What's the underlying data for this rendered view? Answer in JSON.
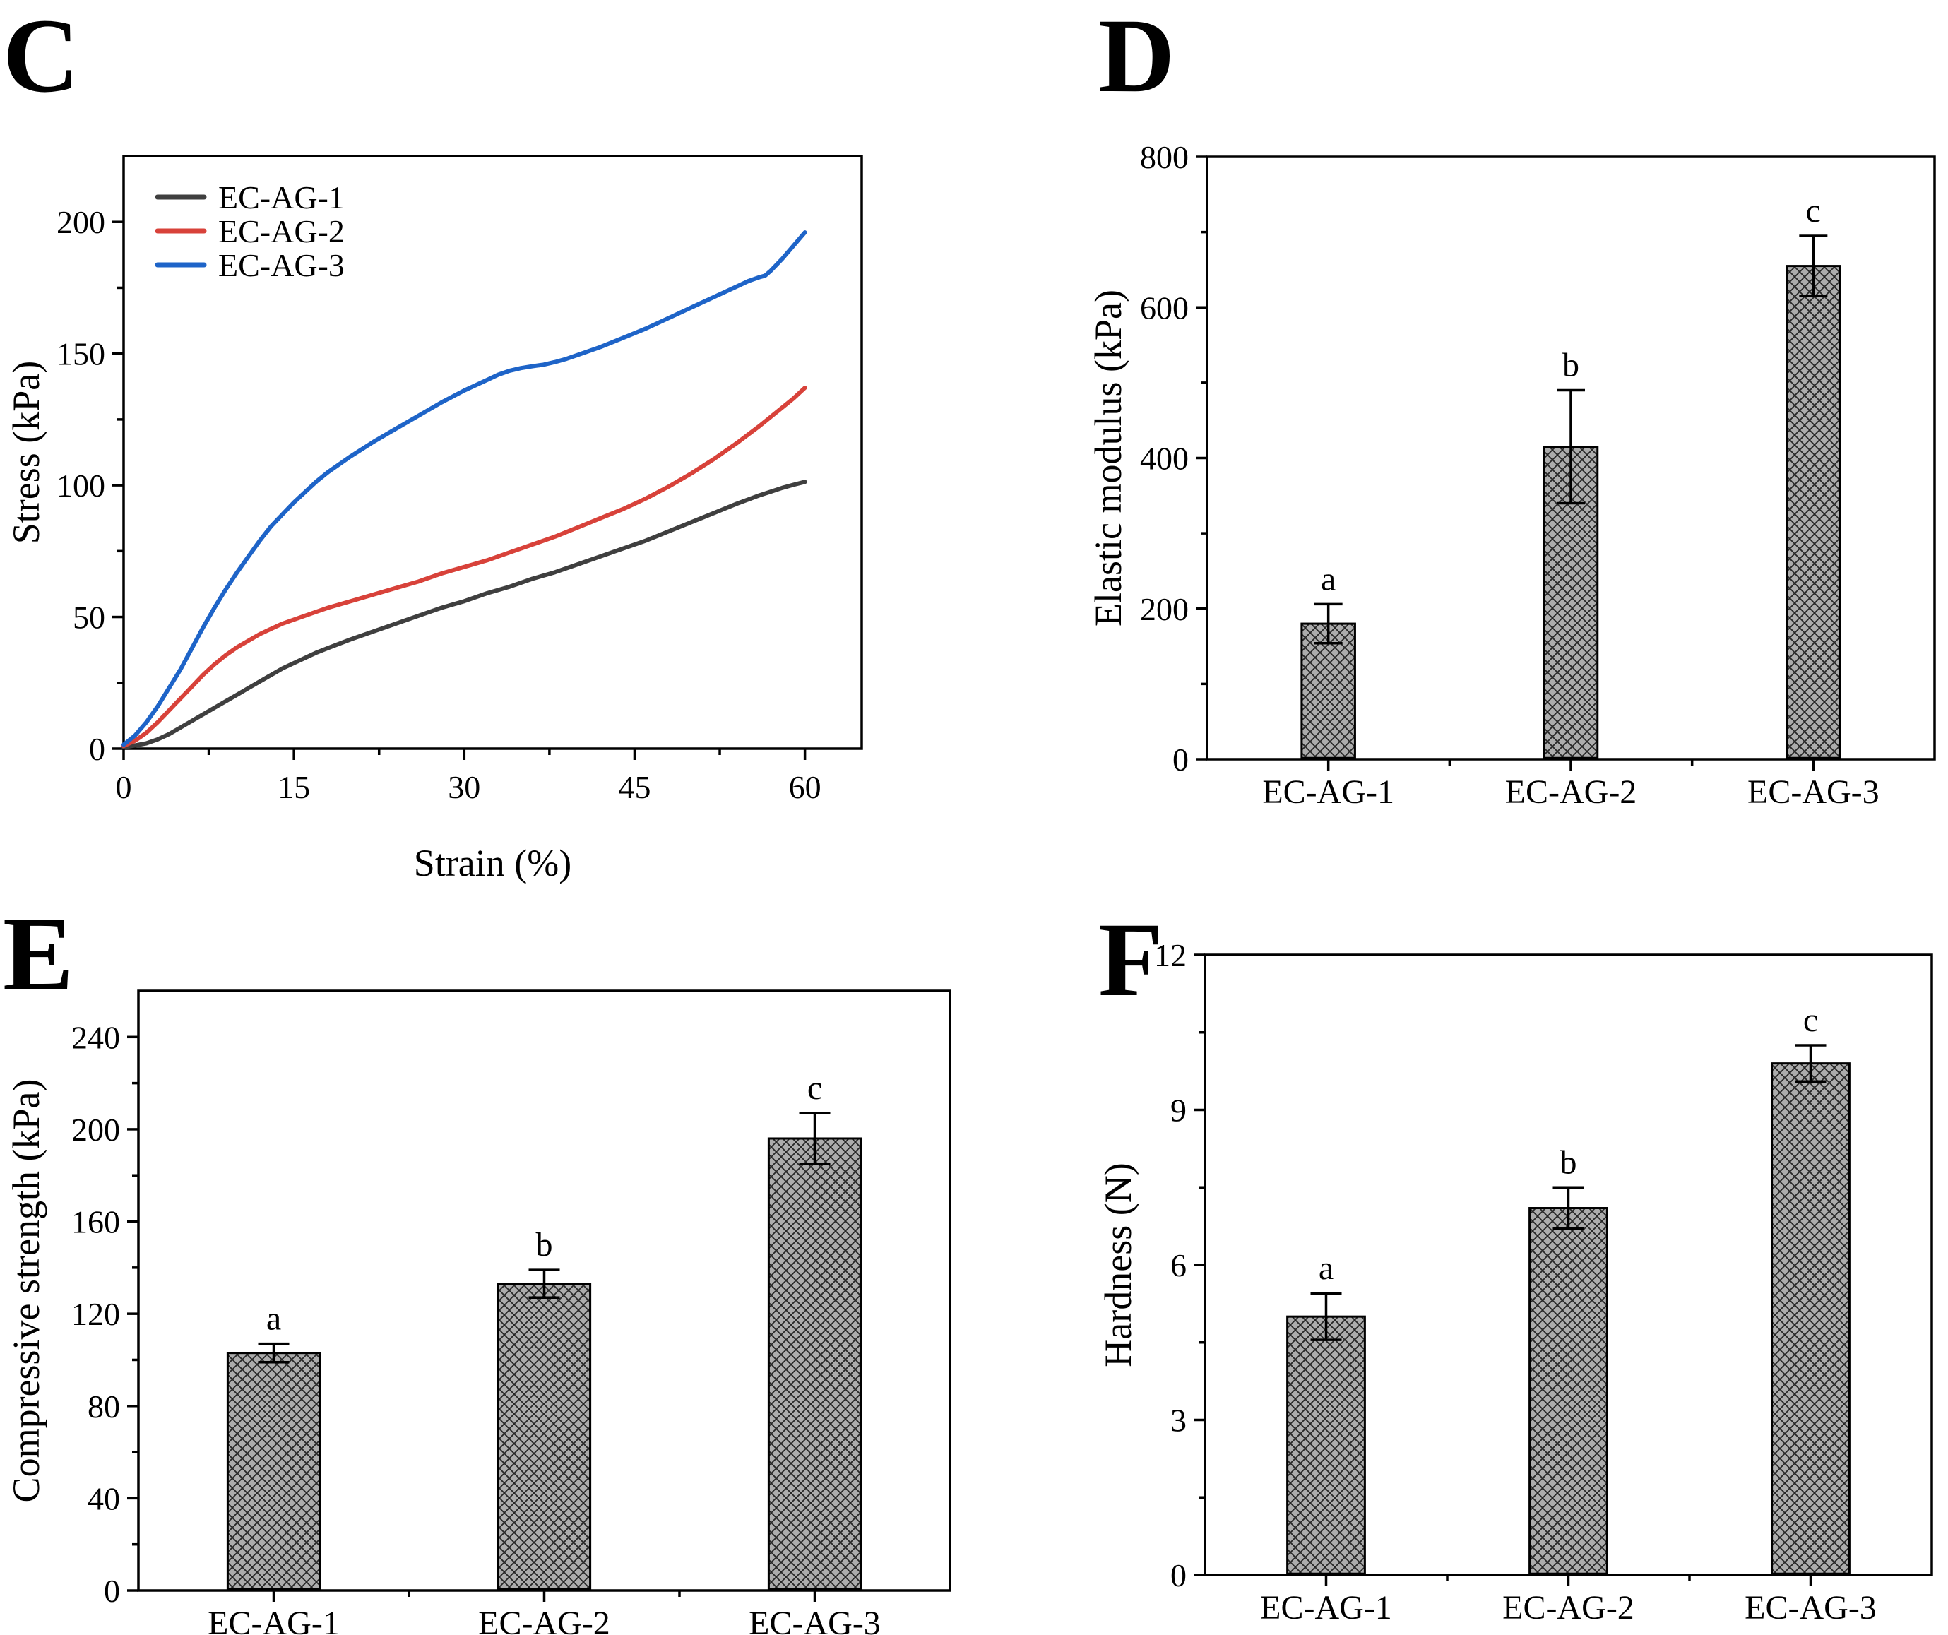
{
  "figure": {
    "background": "#ffffff",
    "panels": [
      {
        "id": "C",
        "label": "C",
        "chart_data": {
          "type": "line",
          "title": "",
          "xlabel": "Strain (%)",
          "ylabel": "Stress (kPa)",
          "xlim": [
            0,
            65
          ],
          "ylim": [
            0,
            225
          ],
          "xticks": [
            0,
            15,
            30,
            45,
            60
          ],
          "yticks": [
            0,
            50,
            100,
            150,
            200
          ],
          "x_minor_step": 7.5,
          "y_minor_step": 25,
          "grid": false,
          "legend_position": "top-left",
          "series": [
            {
              "name": "EC-AG-1",
              "color": "#3f3f3f",
              "points": [
                [
                  0,
                  0.5
                ],
                [
                  1,
                  1.2
                ],
                [
                  2,
                  2
                ],
                [
                  3,
                  3.5
                ],
                [
                  4,
                  5.5
                ],
                [
                  5,
                  8
                ],
                [
                  6,
                  10.5
                ],
                [
                  7,
                  13
                ],
                [
                  8,
                  15.5
                ],
                [
                  9,
                  18
                ],
                [
                  10,
                  20.5
                ],
                [
                  11,
                  23
                ],
                [
                  12,
                  25.5
                ],
                [
                  13,
                  28
                ],
                [
                  14,
                  30.5
                ],
                [
                  15,
                  32.5
                ],
                [
                  16,
                  34.5
                ],
                [
                  17,
                  36.5
                ],
                [
                  18,
                  38.2
                ],
                [
                  20,
                  41.5
                ],
                [
                  22,
                  44.5
                ],
                [
                  24,
                  47.5
                ],
                [
                  26,
                  50.5
                ],
                [
                  28,
                  53.5
                ],
                [
                  30,
                  56
                ],
                [
                  32,
                  59
                ],
                [
                  34,
                  61.5
                ],
                [
                  36,
                  64.5
                ],
                [
                  38,
                  67
                ],
                [
                  40,
                  70
                ],
                [
                  42,
                  73
                ],
                [
                  44,
                  76
                ],
                [
                  46,
                  79
                ],
                [
                  48,
                  82.5
                ],
                [
                  50,
                  86
                ],
                [
                  52,
                  89.5
                ],
                [
                  54,
                  93
                ],
                [
                  56,
                  96.2
                ],
                [
                  57,
                  97.6
                ],
                [
                  58,
                  99
                ],
                [
                  59,
                  100.2
                ],
                [
                  60,
                  101.3
                ]
              ]
            },
            {
              "name": "EC-AG-2",
              "color": "#d8423a",
              "points": [
                [
                  0,
                  1
                ],
                [
                  1,
                  3
                ],
                [
                  2,
                  6
                ],
                [
                  3,
                  10
                ],
                [
                  4,
                  14.5
                ],
                [
                  5,
                  19
                ],
                [
                  6,
                  23.5
                ],
                [
                  7,
                  28
                ],
                [
                  8,
                  32
                ],
                [
                  9,
                  35.5
                ],
                [
                  10,
                  38.5
                ],
                [
                  11,
                  41
                ],
                [
                  12,
                  43.5
                ],
                [
                  13,
                  45.5
                ],
                [
                  14,
                  47.5
                ],
                [
                  15,
                  49
                ],
                [
                  16,
                  50.5
                ],
                [
                  17,
                  52
                ],
                [
                  18,
                  53.5
                ],
                [
                  20,
                  56
                ],
                [
                  22,
                  58.5
                ],
                [
                  24,
                  61
                ],
                [
                  26,
                  63.5
                ],
                [
                  28,
                  66.5
                ],
                [
                  30,
                  69
                ],
                [
                  32,
                  71.5
                ],
                [
                  34,
                  74.5
                ],
                [
                  36,
                  77.5
                ],
                [
                  38,
                  80.5
                ],
                [
                  40,
                  84
                ],
                [
                  42,
                  87.5
                ],
                [
                  44,
                  91
                ],
                [
                  46,
                  95
                ],
                [
                  48,
                  99.5
                ],
                [
                  50,
                  104.5
                ],
                [
                  52,
                  110
                ],
                [
                  54,
                  116
                ],
                [
                  56,
                  122.5
                ],
                [
                  58,
                  129.5
                ],
                [
                  59,
                  133
                ],
                [
                  60,
                  137
                ]
              ]
            },
            {
              "name": "EC-AG-3",
              "color": "#1e64c8",
              "points": [
                [
                  0,
                  1.5
                ],
                [
                  1,
                  5
                ],
                [
                  2,
                  10
                ],
                [
                  3,
                  16
                ],
                [
                  4,
                  23
                ],
                [
                  5,
                  30
                ],
                [
                  6,
                  38
                ],
                [
                  7,
                  46
                ],
                [
                  8,
                  53.5
                ],
                [
                  9,
                  60.5
                ],
                [
                  10,
                  67
                ],
                [
                  11,
                  73
                ],
                [
                  12,
                  79
                ],
                [
                  13,
                  84.5
                ],
                [
                  14,
                  89
                ],
                [
                  15,
                  93.5
                ],
                [
                  16,
                  97.5
                ],
                [
                  17,
                  101.5
                ],
                [
                  18,
                  105
                ],
                [
                  20,
                  111
                ],
                [
                  22,
                  116.5
                ],
                [
                  24,
                  121.5
                ],
                [
                  26,
                  126.5
                ],
                [
                  28,
                  131.5
                ],
                [
                  30,
                  136
                ],
                [
                  32,
                  140
                ],
                [
                  33,
                  142
                ],
                [
                  34,
                  143.5
                ],
                [
                  35,
                  144.5
                ],
                [
                  36,
                  145.2
                ],
                [
                  37,
                  145.8
                ],
                [
                  38,
                  146.8
                ],
                [
                  39,
                  148
                ],
                [
                  40,
                  149.5
                ],
                [
                  42,
                  152.5
                ],
                [
                  44,
                  156
                ],
                [
                  46,
                  159.5
                ],
                [
                  48,
                  163.5
                ],
                [
                  50,
                  167.5
                ],
                [
                  52,
                  171.5
                ],
                [
                  54,
                  175.5
                ],
                [
                  55,
                  177.5
                ],
                [
                  56,
                  179
                ],
                [
                  56.5,
                  179.6
                ],
                [
                  57,
                  181.5
                ],
                [
                  58,
                  186
                ],
                [
                  59,
                  191
                ],
                [
                  60,
                  196
                ]
              ]
            }
          ]
        }
      },
      {
        "id": "D",
        "label": "D",
        "chart_data": {
          "type": "bar",
          "title": "",
          "xlabel": "",
          "ylabel": "Elastic modulus (kPa)",
          "categories": [
            "EC-AG-1",
            "EC-AG-2",
            "EC-AG-3"
          ],
          "values": [
            180,
            415,
            655
          ],
          "errors": [
            26,
            75,
            40
          ],
          "sig_letters": [
            "a",
            "b",
            "c"
          ],
          "ylim": [
            0,
            800
          ],
          "yticks": [
            0,
            200,
            400,
            600,
            800
          ],
          "y_minor_step": 100,
          "grid": false,
          "bar_fill": "#acacac",
          "hatch_color": "#262626",
          "bar_border": "#000000"
        }
      },
      {
        "id": "E",
        "label": "E",
        "chart_data": {
          "type": "bar",
          "title": "",
          "xlabel": "",
          "ylabel": "Compressive strength (kPa)",
          "categories": [
            "EC-AG-1",
            "EC-AG-2",
            "EC-AG-3"
          ],
          "values": [
            103,
            133,
            196
          ],
          "errors": [
            4,
            6,
            11
          ],
          "sig_letters": [
            "a",
            "b",
            "c"
          ],
          "ylim": [
            0,
            260
          ],
          "yticks": [
            0,
            40,
            80,
            120,
            160,
            200,
            240
          ],
          "y_minor_step": 20,
          "grid": false,
          "bar_fill": "#acacac",
          "hatch_color": "#262626",
          "bar_border": "#000000"
        }
      },
      {
        "id": "F",
        "label": "F",
        "chart_data": {
          "type": "bar",
          "title": "",
          "xlabel": "",
          "ylabel": "Hardness (N)",
          "categories": [
            "EC-AG-1",
            "EC-AG-2",
            "EC-AG-3"
          ],
          "values": [
            5.0,
            7.1,
            9.9
          ],
          "errors": [
            0.45,
            0.4,
            0.35
          ],
          "sig_letters": [
            "a",
            "b",
            "c"
          ],
          "ylim": [
            0,
            12
          ],
          "yticks": [
            0,
            3,
            6,
            9,
            12
          ],
          "y_minor_step": 1.5,
          "grid": false,
          "bar_fill": "#acacac",
          "hatch_color": "#262626",
          "bar_border": "#000000"
        }
      }
    ]
  }
}
